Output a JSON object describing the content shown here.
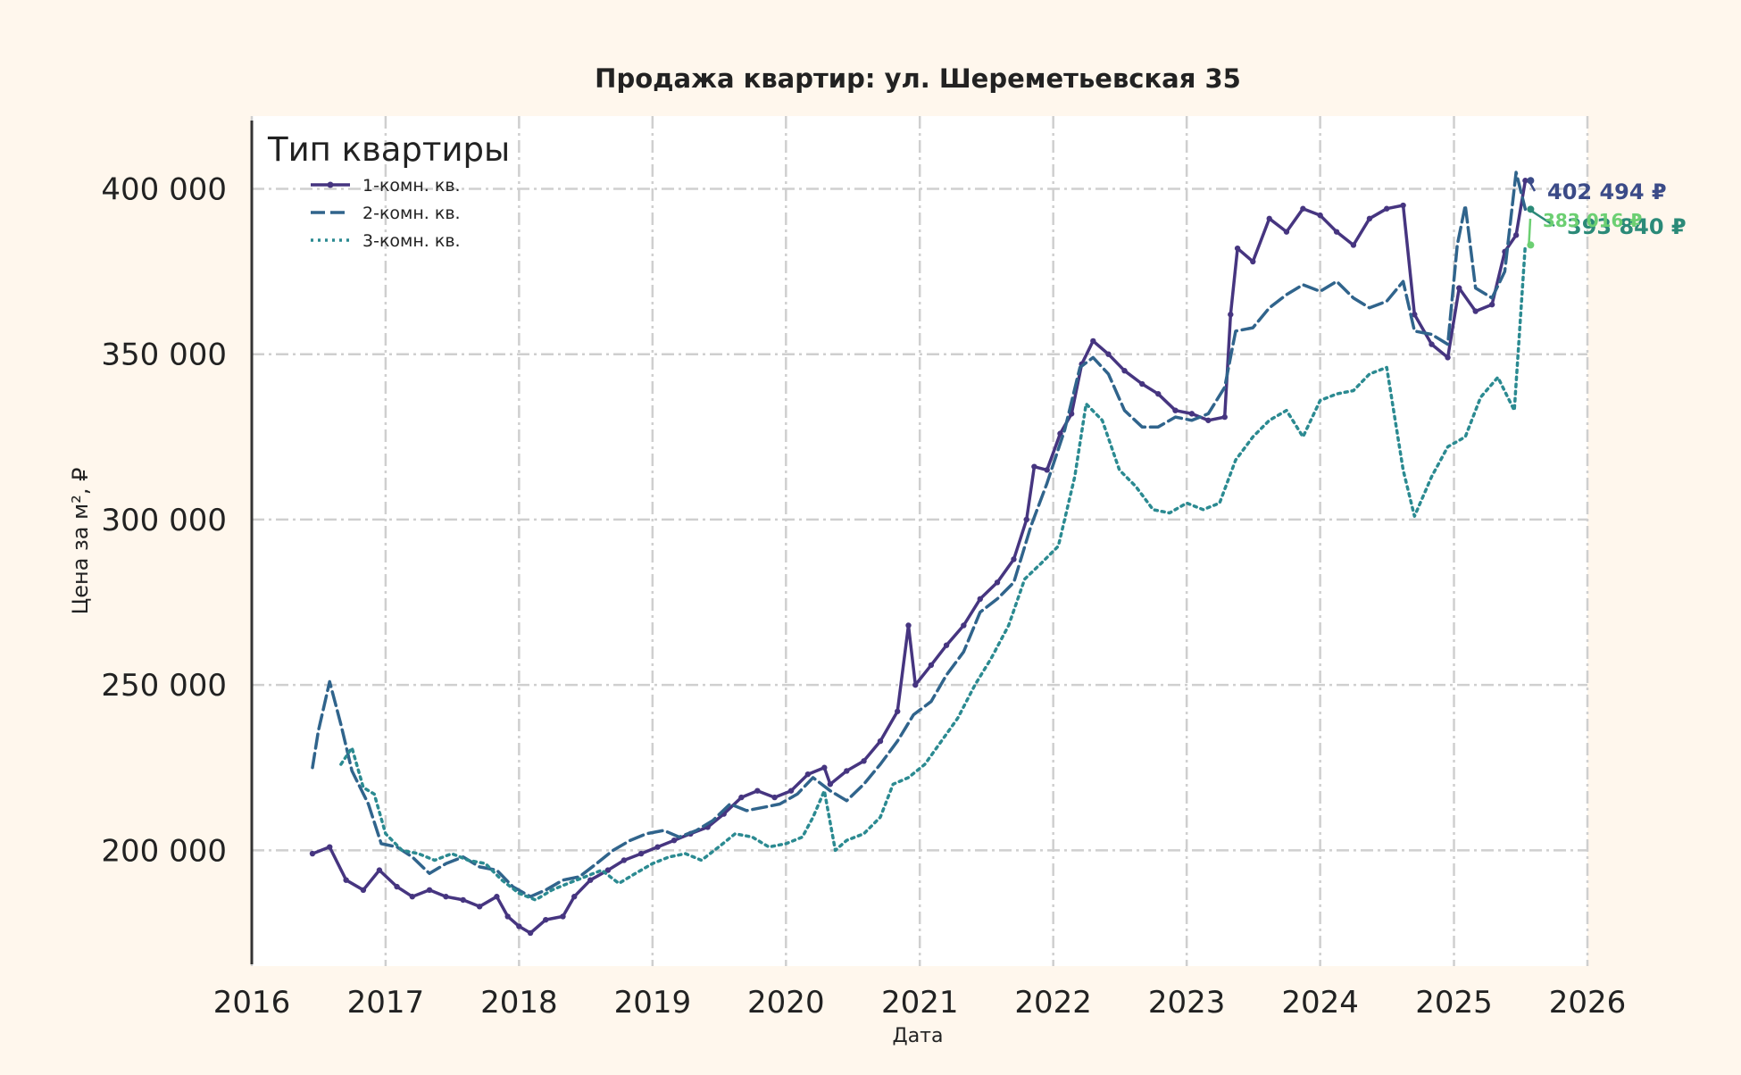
{
  "chart_data": {
    "type": "line",
    "title": "Продажа квартир: ул. Шереметьевская 35",
    "xlabel": "Дата",
    "ylabel": "Цена за м², ₽",
    "x_ticks": [
      "2016",
      "2017",
      "2018",
      "2019",
      "2020",
      "2021",
      "2022",
      "2023",
      "2024",
      "2025",
      "2026"
    ],
    "y_ticks": [
      200000,
      250000,
      300000,
      350000,
      400000
    ],
    "y_tick_labels": [
      "200 000",
      "250 000",
      "300 000",
      "350 000",
      "400 000"
    ],
    "xlim": [
      "2016-01-01",
      "2026-01-01"
    ],
    "ylim": [
      165000,
      422000
    ],
    "grid": true,
    "legend": {
      "title": "Тип квартиры",
      "position": "top-left"
    },
    "colors": {
      "background": "#fff7ed",
      "plot_background": "#ffffff",
      "grid": "#cfcfcf",
      "one_room": "#463580",
      "two_room": "#30648c",
      "three_room": "#2b8a91"
    },
    "series": [
      {
        "name": "1-комн. кв.",
        "color": "#463580",
        "style": "solid",
        "points": [
          [
            "2016-06-15",
            199000
          ],
          [
            "2016-08-01",
            201000
          ],
          [
            "2016-09-15",
            191000
          ],
          [
            "2016-11-01",
            188000
          ],
          [
            "2016-12-15",
            194000
          ],
          [
            "2017-02-01",
            189000
          ],
          [
            "2017-03-15",
            186000
          ],
          [
            "2017-05-01",
            188000
          ],
          [
            "2017-06-15",
            186000
          ],
          [
            "2017-08-01",
            185000
          ],
          [
            "2017-09-15",
            183000
          ],
          [
            "2017-11-01",
            186000
          ],
          [
            "2017-12-01",
            180000
          ],
          [
            "2018-01-01",
            177000
          ],
          [
            "2018-02-01",
            175000
          ],
          [
            "2018-03-15",
            179000
          ],
          [
            "2018-05-01",
            180000
          ],
          [
            "2018-06-01",
            186000
          ],
          [
            "2018-07-15",
            191000
          ],
          [
            "2018-09-01",
            194000
          ],
          [
            "2018-10-15",
            197000
          ],
          [
            "2018-12-01",
            199000
          ],
          [
            "2019-01-15",
            201000
          ],
          [
            "2019-03-01",
            203000
          ],
          [
            "2019-04-15",
            205000
          ],
          [
            "2019-06-01",
            207000
          ],
          [
            "2019-07-15",
            211000
          ],
          [
            "2019-09-01",
            216000
          ],
          [
            "2019-10-15",
            218000
          ],
          [
            "2019-12-01",
            216000
          ],
          [
            "2020-01-15",
            218000
          ],
          [
            "2020-03-01",
            223000
          ],
          [
            "2020-04-15",
            225000
          ],
          [
            "2020-05-01",
            220000
          ],
          [
            "2020-06-15",
            224000
          ],
          [
            "2020-08-01",
            227000
          ],
          [
            "2020-09-15",
            233000
          ],
          [
            "2020-11-01",
            242000
          ],
          [
            "2020-12-01",
            268000
          ],
          [
            "2020-12-20",
            250000
          ],
          [
            "2021-02-01",
            256000
          ],
          [
            "2021-03-15",
            262000
          ],
          [
            "2021-05-01",
            268000
          ],
          [
            "2021-06-15",
            276000
          ],
          [
            "2021-08-01",
            281000
          ],
          [
            "2021-09-15",
            288000
          ],
          [
            "2021-10-20",
            300000
          ],
          [
            "2021-11-10",
            316000
          ],
          [
            "2021-12-15",
            315000
          ],
          [
            "2022-01-20",
            326000
          ],
          [
            "2022-02-20",
            332000
          ],
          [
            "2022-03-20",
            347000
          ],
          [
            "2022-04-20",
            354000
          ],
          [
            "2022-06-01",
            350000
          ],
          [
            "2022-07-15",
            345000
          ],
          [
            "2022-09-01",
            341000
          ],
          [
            "2022-10-15",
            338000
          ],
          [
            "2022-12-01",
            333000
          ],
          [
            "2023-01-15",
            332000
          ],
          [
            "2023-03-01",
            330000
          ],
          [
            "2023-04-15",
            331000
          ],
          [
            "2023-05-01",
            362000
          ],
          [
            "2023-05-20",
            382000
          ],
          [
            "2023-07-01",
            378000
          ],
          [
            "2023-08-15",
            391000
          ],
          [
            "2023-10-01",
            387000
          ],
          [
            "2023-11-15",
            394000
          ],
          [
            "2024-01-01",
            392000
          ],
          [
            "2024-02-15",
            387000
          ],
          [
            "2024-04-01",
            383000
          ],
          [
            "2024-05-15",
            391000
          ],
          [
            "2024-07-01",
            394000
          ],
          [
            "2024-08-15",
            395000
          ],
          [
            "2024-09-15",
            362000
          ],
          [
            "2024-11-01",
            353000
          ],
          [
            "2024-12-15",
            349000
          ],
          [
            "2025-01-15",
            370000
          ],
          [
            "2025-03-01",
            363000
          ],
          [
            "2025-04-15",
            365000
          ],
          [
            "2025-05-20",
            381000
          ],
          [
            "2025-06-20",
            386000
          ],
          [
            "2025-07-15",
            402494
          ]
        ]
      },
      {
        "name": "2-комн. кв.",
        "color": "#30648c",
        "style": "dashed",
        "points": [
          [
            "2016-06-15",
            225000
          ],
          [
            "2016-07-01",
            236000
          ],
          [
            "2016-08-01",
            251000
          ],
          [
            "2016-09-01",
            238000
          ],
          [
            "2016-10-01",
            224000
          ],
          [
            "2016-11-15",
            214000
          ],
          [
            "2016-12-20",
            202000
          ],
          [
            "2017-02-01",
            201000
          ],
          [
            "2017-03-15",
            198000
          ],
          [
            "2017-05-01",
            193000
          ],
          [
            "2017-06-15",
            196000
          ],
          [
            "2017-08-01",
            198000
          ],
          [
            "2017-09-15",
            195000
          ],
          [
            "2017-11-01",
            194000
          ],
          [
            "2017-12-15",
            189000
          ],
          [
            "2018-02-01",
            186000
          ],
          [
            "2018-03-15",
            188000
          ],
          [
            "2018-05-01",
            191000
          ],
          [
            "2018-06-15",
            192000
          ],
          [
            "2018-08-01",
            196000
          ],
          [
            "2018-09-15",
            200000
          ],
          [
            "2018-11-01",
            203000
          ],
          [
            "2018-12-15",
            205000
          ],
          [
            "2019-02-01",
            206000
          ],
          [
            "2019-03-15",
            204000
          ],
          [
            "2019-05-01",
            206000
          ],
          [
            "2019-06-15",
            209000
          ],
          [
            "2019-08-01",
            214000
          ],
          [
            "2019-09-15",
            212000
          ],
          [
            "2019-11-01",
            213000
          ],
          [
            "2019-12-15",
            214000
          ],
          [
            "2020-02-01",
            217000
          ],
          [
            "2020-03-15",
            222000
          ],
          [
            "2020-05-01",
            218000
          ],
          [
            "2020-06-15",
            215000
          ],
          [
            "2020-08-01",
            220000
          ],
          [
            "2020-09-15",
            226000
          ],
          [
            "2020-11-01",
            233000
          ],
          [
            "2020-12-15",
            241000
          ],
          [
            "2021-02-01",
            245000
          ],
          [
            "2021-03-15",
            253000
          ],
          [
            "2021-05-01",
            260000
          ],
          [
            "2021-06-15",
            272000
          ],
          [
            "2021-08-01",
            276000
          ],
          [
            "2021-09-15",
            281000
          ],
          [
            "2021-11-01",
            298000
          ],
          [
            "2021-12-15",
            311000
          ],
          [
            "2022-02-01",
            327000
          ],
          [
            "2022-03-15",
            346000
          ],
          [
            "2022-04-20",
            349000
          ],
          [
            "2022-06-01",
            344000
          ],
          [
            "2022-07-15",
            333000
          ],
          [
            "2022-09-01",
            328000
          ],
          [
            "2022-10-15",
            328000
          ],
          [
            "2022-12-01",
            331000
          ],
          [
            "2023-01-15",
            330000
          ],
          [
            "2023-03-01",
            332000
          ],
          [
            "2023-04-15",
            340000
          ],
          [
            "2023-05-15",
            357000
          ],
          [
            "2023-07-01",
            358000
          ],
          [
            "2023-08-15",
            364000
          ],
          [
            "2023-10-01",
            368000
          ],
          [
            "2023-11-15",
            371000
          ],
          [
            "2024-01-01",
            369000
          ],
          [
            "2024-02-15",
            372000
          ],
          [
            "2024-04-01",
            367000
          ],
          [
            "2024-05-15",
            364000
          ],
          [
            "2024-07-01",
            366000
          ],
          [
            "2024-08-15",
            372000
          ],
          [
            "2024-09-15",
            357000
          ],
          [
            "2024-11-01",
            356000
          ],
          [
            "2024-12-15",
            353000
          ],
          [
            "2025-01-10",
            383000
          ],
          [
            "2025-02-01",
            395000
          ],
          [
            "2025-03-01",
            370000
          ],
          [
            "2025-04-15",
            367000
          ],
          [
            "2025-05-20",
            375000
          ],
          [
            "2025-06-20",
            405000
          ],
          [
            "2025-07-15",
            393840
          ]
        ]
      },
      {
        "name": "3-комн. кв.",
        "color": "#2b8a91",
        "style": "dotted",
        "points": [
          [
            "2016-09-01",
            226000
          ],
          [
            "2016-10-01",
            231000
          ],
          [
            "2016-11-01",
            219000
          ],
          [
            "2016-12-01",
            217000
          ],
          [
            "2017-01-01",
            205000
          ],
          [
            "2017-02-15",
            200000
          ],
          [
            "2017-04-01",
            199000
          ],
          [
            "2017-05-15",
            197000
          ],
          [
            "2017-07-01",
            199000
          ],
          [
            "2017-08-15",
            197000
          ],
          [
            "2017-10-01",
            196000
          ],
          [
            "2017-11-15",
            191000
          ],
          [
            "2018-01-01",
            187000
          ],
          [
            "2018-02-15",
            185000
          ],
          [
            "2018-04-01",
            188000
          ],
          [
            "2018-05-15",
            190000
          ],
          [
            "2018-07-01",
            192000
          ],
          [
            "2018-08-15",
            194000
          ],
          [
            "2018-10-01",
            190000
          ],
          [
            "2018-11-15",
            193000
          ],
          [
            "2019-01-01",
            196000
          ],
          [
            "2019-02-15",
            198000
          ],
          [
            "2019-04-01",
            199000
          ],
          [
            "2019-05-15",
            197000
          ],
          [
            "2019-07-01",
            201000
          ],
          [
            "2019-08-15",
            205000
          ],
          [
            "2019-10-01",
            204000
          ],
          [
            "2019-11-15",
            201000
          ],
          [
            "2020-01-01",
            202000
          ],
          [
            "2020-02-15",
            204000
          ],
          [
            "2020-03-15",
            210000
          ],
          [
            "2020-04-15",
            218000
          ],
          [
            "2020-05-15",
            200000
          ],
          [
            "2020-06-15",
            203000
          ],
          [
            "2020-08-01",
            205000
          ],
          [
            "2020-09-15",
            210000
          ],
          [
            "2020-10-20",
            220000
          ],
          [
            "2020-12-01",
            222000
          ],
          [
            "2021-01-15",
            226000
          ],
          [
            "2021-03-01",
            233000
          ],
          [
            "2021-04-15",
            240000
          ],
          [
            "2021-06-01",
            250000
          ],
          [
            "2021-07-15",
            258000
          ],
          [
            "2021-09-01",
            268000
          ],
          [
            "2021-10-15",
            282000
          ],
          [
            "2021-12-01",
            287000
          ],
          [
            "2022-01-15",
            292000
          ],
          [
            "2022-03-01",
            313000
          ],
          [
            "2022-04-01",
            335000
          ],
          [
            "2022-05-15",
            330000
          ],
          [
            "2022-07-01",
            315000
          ],
          [
            "2022-08-15",
            310000
          ],
          [
            "2022-10-01",
            303000
          ],
          [
            "2022-11-15",
            302000
          ],
          [
            "2023-01-01",
            305000
          ],
          [
            "2023-02-15",
            303000
          ],
          [
            "2023-04-01",
            305000
          ],
          [
            "2023-05-15",
            318000
          ],
          [
            "2023-07-01",
            325000
          ],
          [
            "2023-08-15",
            330000
          ],
          [
            "2023-10-01",
            333000
          ],
          [
            "2023-11-15",
            325000
          ],
          [
            "2024-01-01",
            336000
          ],
          [
            "2024-02-15",
            338000
          ],
          [
            "2024-04-01",
            339000
          ],
          [
            "2024-05-15",
            344000
          ],
          [
            "2024-07-01",
            346000
          ],
          [
            "2024-08-15",
            315000
          ],
          [
            "2024-09-15",
            301000
          ],
          [
            "2024-11-01",
            313000
          ],
          [
            "2024-12-15",
            322000
          ],
          [
            "2025-02-01",
            325000
          ],
          [
            "2025-03-15",
            337000
          ],
          [
            "2025-05-01",
            343000
          ],
          [
            "2025-06-15",
            333000
          ],
          [
            "2025-07-15",
            383016
          ]
        ]
      }
    ],
    "annotations": [
      {
        "text": "402 494 ₽",
        "series": "1-комн. кв.",
        "color": "#3b4b88"
      },
      {
        "text": "393 840 ₽",
        "series": "2-комн. кв.",
        "color": "#2b8a78"
      },
      {
        "text": "383 016 ₽",
        "series": "3-комн. кв.",
        "color": "#6ccf72"
      }
    ]
  }
}
